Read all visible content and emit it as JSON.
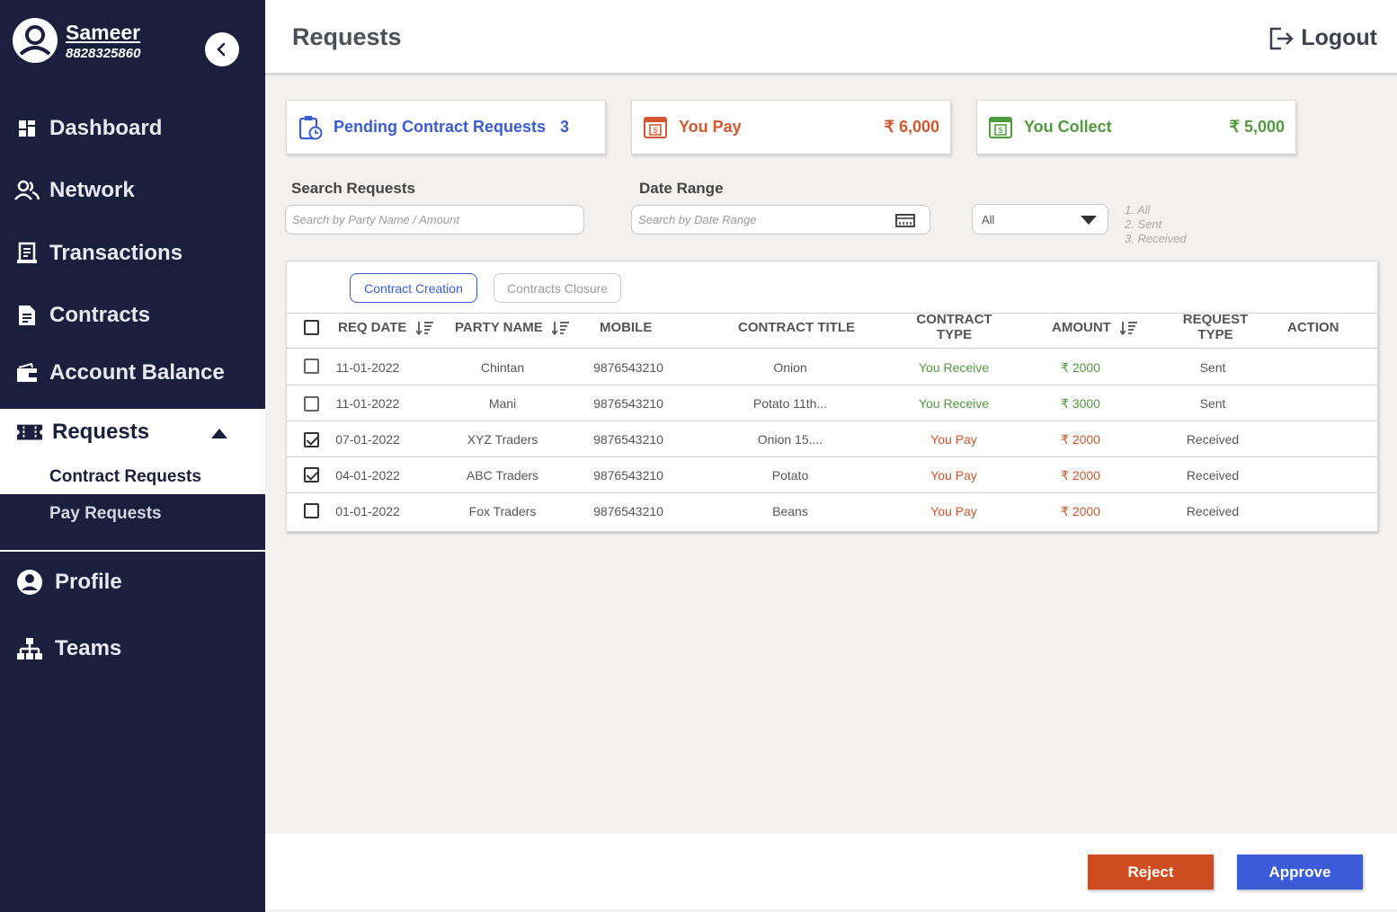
{
  "user": {
    "name": "Sameer",
    "phone": "8828325860"
  },
  "sidebar": {
    "items": [
      {
        "label": "Dashboard"
      },
      {
        "label": "Network"
      },
      {
        "label": "Transactions"
      },
      {
        "label": "Contracts"
      },
      {
        "label": "Account Balance"
      },
      {
        "label": "Requests"
      },
      {
        "label": "Profile"
      },
      {
        "label": "Teams"
      }
    ],
    "sub_items": [
      {
        "label": "Contract Requests"
      },
      {
        "label": "Pay Requests"
      }
    ]
  },
  "header": {
    "title": "Requests",
    "logout_label": "Logout"
  },
  "summary": {
    "pending": {
      "label": "Pending Contract Requests",
      "value": "3"
    },
    "you_pay": {
      "label": "You Pay",
      "value": "₹ 6,000"
    },
    "you_collect": {
      "label": "You Collect",
      "value": "₹ 5,000"
    }
  },
  "colors": {
    "sidebar_bg": "#1a1f3d",
    "blue": "#3b5bd5",
    "green": "#4f9a3c",
    "orange": "#d0572e"
  },
  "filters": {
    "search_label": "Search Requests",
    "search_placeholder": "Search by Party Name / Amount",
    "date_label": "Date Range",
    "date_placeholder": "Search by Date Range",
    "select_value": "All",
    "options": [
      "1. All",
      "2. Sent",
      "3. Received"
    ]
  },
  "tabs": [
    "Contract Creation",
    "Contracts Closure"
  ],
  "table": {
    "headers": {
      "req_date": "REQ DATE",
      "party_name": "PARTY NAME",
      "mobile": "MOBILE",
      "contract_title": "CONTRACT TITLE",
      "contract_type_1": "CONTRACT",
      "contract_type_2": "TYPE",
      "amount": "AMOUNT",
      "request_type_1": "REQUEST",
      "request_type_2": "TYPE",
      "action": "ACTION"
    },
    "rows": [
      {
        "date": "11-01-2022",
        "party": "Chintan",
        "mobile": "9876543210",
        "title": "Onion",
        "type": "You Receive",
        "amount": "₹ 2000",
        "request": "Sent",
        "checked": false
      },
      {
        "date": "11-01-2022",
        "party": "Mani",
        "mobile": "9876543210",
        "title": "Potato 11th...",
        "type": "You Receive",
        "amount": "₹ 3000",
        "request": "Sent",
        "checked": false
      },
      {
        "date": "07-01-2022",
        "party": "XYZ Traders",
        "mobile": "9876543210",
        "title": "Onion 15....",
        "type": "You Pay",
        "amount": "₹ 2000",
        "request": "Received",
        "checked": true
      },
      {
        "date": "04-01-2022",
        "party": "ABC Traders",
        "mobile": "9876543210",
        "title": "Potato",
        "type": "You Pay",
        "amount": "₹ 2000",
        "request": "Received",
        "checked": true
      },
      {
        "date": "01-01-2022",
        "party": "Fox Traders",
        "mobile": "9876543210",
        "title": "Beans",
        "type": "You Pay",
        "amount": "₹ 2000",
        "request": "Received",
        "checked": false
      }
    ]
  },
  "footer": {
    "reject_label": "Reject",
    "approve_label": "Approve"
  }
}
